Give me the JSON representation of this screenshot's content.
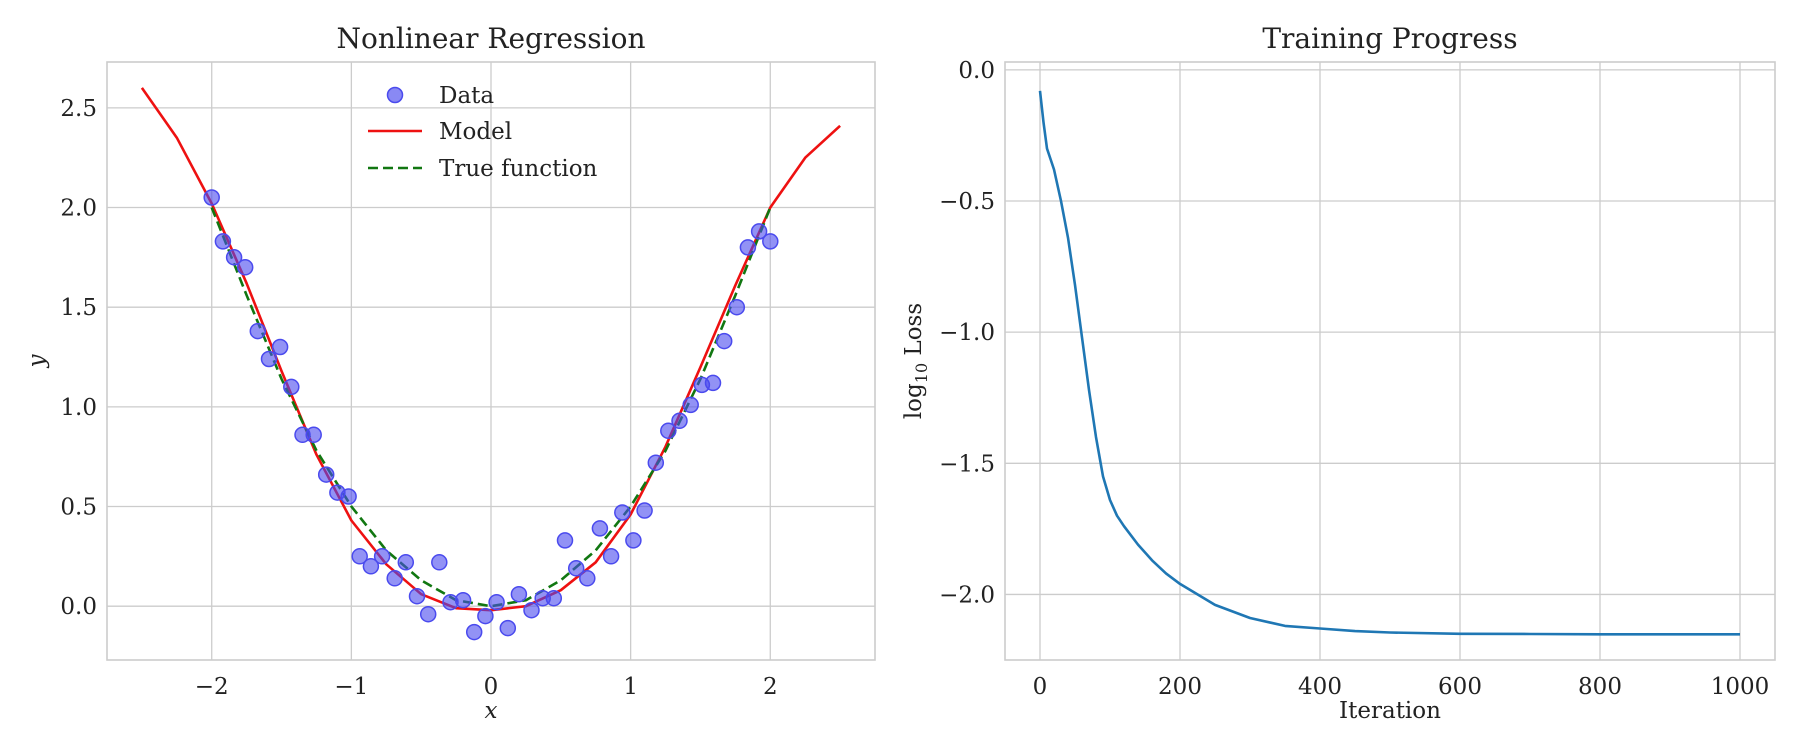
{
  "chart_data": [
    {
      "type": "scatter",
      "title": "Nonlinear Regression",
      "xlabel": "x",
      "ylabel": "y",
      "xlim": [
        -2.75,
        2.75
      ],
      "ylim": [
        -0.27,
        2.73
      ],
      "xticks": [
        -2,
        -1,
        0,
        1,
        2
      ],
      "xtick_labels": [
        "−2",
        "−1",
        "0",
        "1",
        "2"
      ],
      "yticks": [
        0.0,
        0.5,
        1.0,
        1.5,
        2.0,
        2.5
      ],
      "ytick_labels": [
        "0.0",
        "0.5",
        "1.0",
        "1.5",
        "2.0",
        "2.5"
      ],
      "grid": true,
      "legend": {
        "placement": "upper-center",
        "entries": [
          "Data",
          "Model",
          "True function"
        ]
      },
      "colors": {
        "data": "#4a4aee",
        "model": "#ee1111",
        "true_function": "#117711"
      },
      "series": [
        {
          "name": "Data",
          "kind": "scatter",
          "x": [
            -2.0,
            -1.92,
            -1.84,
            -1.76,
            -1.67,
            -1.59,
            -1.51,
            -1.43,
            -1.35,
            -1.27,
            -1.18,
            -1.1,
            -1.02,
            -0.94,
            -0.86,
            -0.78,
            -0.69,
            -0.61,
            -0.53,
            -0.45,
            -0.37,
            -0.29,
            -0.2,
            -0.12,
            -0.04,
            0.04,
            0.12,
            0.2,
            0.29,
            0.37,
            0.45,
            0.53,
            0.61,
            0.69,
            0.78,
            0.86,
            0.94,
            1.02,
            1.1,
            1.18,
            1.27,
            1.35,
            1.43,
            1.51,
            1.59,
            1.67,
            1.76,
            1.84,
            1.92,
            2.0
          ],
          "y": [
            2.05,
            1.83,
            1.75,
            1.7,
            1.38,
            1.24,
            1.3,
            1.1,
            0.86,
            0.86,
            0.66,
            0.57,
            0.55,
            0.25,
            0.2,
            0.25,
            0.14,
            0.22,
            0.05,
            -0.04,
            0.22,
            0.02,
            0.03,
            -0.13,
            -0.05,
            0.02,
            -0.11,
            0.06,
            -0.02,
            0.04,
            0.04,
            0.33,
            0.19,
            0.14,
            0.39,
            0.25,
            0.47,
            0.33,
            0.48,
            0.72,
            0.88,
            0.93,
            1.01,
            1.11,
            1.12,
            1.33,
            1.5,
            1.8,
            1.88,
            1.83
          ]
        },
        {
          "name": "Model",
          "kind": "line",
          "x": [
            -2.5,
            -2.25,
            -2.0,
            -1.75,
            -1.5,
            -1.25,
            -1.0,
            -0.75,
            -0.5,
            -0.25,
            0.0,
            0.25,
            0.5,
            0.75,
            1.0,
            1.25,
            1.5,
            1.75,
            2.0,
            2.25,
            2.5
          ],
          "y": [
            2.6,
            2.35,
            2.02,
            1.62,
            1.18,
            0.76,
            0.43,
            0.21,
            0.06,
            -0.01,
            -0.02,
            0.0,
            0.08,
            0.22,
            0.46,
            0.8,
            1.2,
            1.61,
            2.0,
            2.25,
            2.41
          ]
        },
        {
          "name": "True function",
          "kind": "dashed-line",
          "x": [
            -2.0,
            -1.75,
            -1.5,
            -1.25,
            -1.0,
            -0.75,
            -0.5,
            -0.25,
            0.0,
            0.25,
            0.5,
            0.75,
            1.0,
            1.25,
            1.5,
            1.75,
            2.0
          ],
          "y": [
            2.0,
            1.56,
            1.14,
            0.78,
            0.5,
            0.28,
            0.13,
            0.03,
            0.0,
            0.03,
            0.13,
            0.28,
            0.5,
            0.78,
            1.14,
            1.56,
            2.0
          ]
        }
      ]
    },
    {
      "type": "line",
      "title": "Training Progress",
      "xlabel": "Iteration",
      "ylabel_main": "log",
      "ylabel_sub": "10",
      "ylabel_rest": " Loss",
      "xlim": [
        -50,
        1050
      ],
      "ylim": [
        -2.25,
        0.03
      ],
      "xticks": [
        0,
        200,
        400,
        600,
        800,
        1000
      ],
      "xtick_labels": [
        "0",
        "200",
        "400",
        "600",
        "800",
        "1000"
      ],
      "yticks": [
        0.0,
        -0.5,
        -1.0,
        -1.5,
        -2.0
      ],
      "ytick_labels": [
        "0.0",
        "−0.5",
        "−1.0",
        "−1.5",
        "−2.0"
      ],
      "grid": true,
      "colors": {
        "line": "#1f77b4"
      },
      "series": [
        {
          "x": [
            0,
            5,
            10,
            15,
            20,
            30,
            40,
            50,
            60,
            70,
            80,
            90,
            100,
            110,
            120,
            140,
            160,
            180,
            200,
            250,
            300,
            350,
            400,
            450,
            500,
            600,
            700,
            800,
            900,
            1000
          ],
          "y": [
            -0.08,
            -0.2,
            -0.3,
            -0.34,
            -0.38,
            -0.5,
            -0.64,
            -0.82,
            -1.02,
            -1.22,
            -1.4,
            -1.55,
            -1.64,
            -1.7,
            -1.74,
            -1.81,
            -1.87,
            -1.92,
            -1.96,
            -2.04,
            -2.09,
            -2.12,
            -2.13,
            -2.14,
            -2.145,
            -2.15,
            -2.151,
            -2.152,
            -2.152,
            -2.152
          ]
        }
      ]
    }
  ]
}
